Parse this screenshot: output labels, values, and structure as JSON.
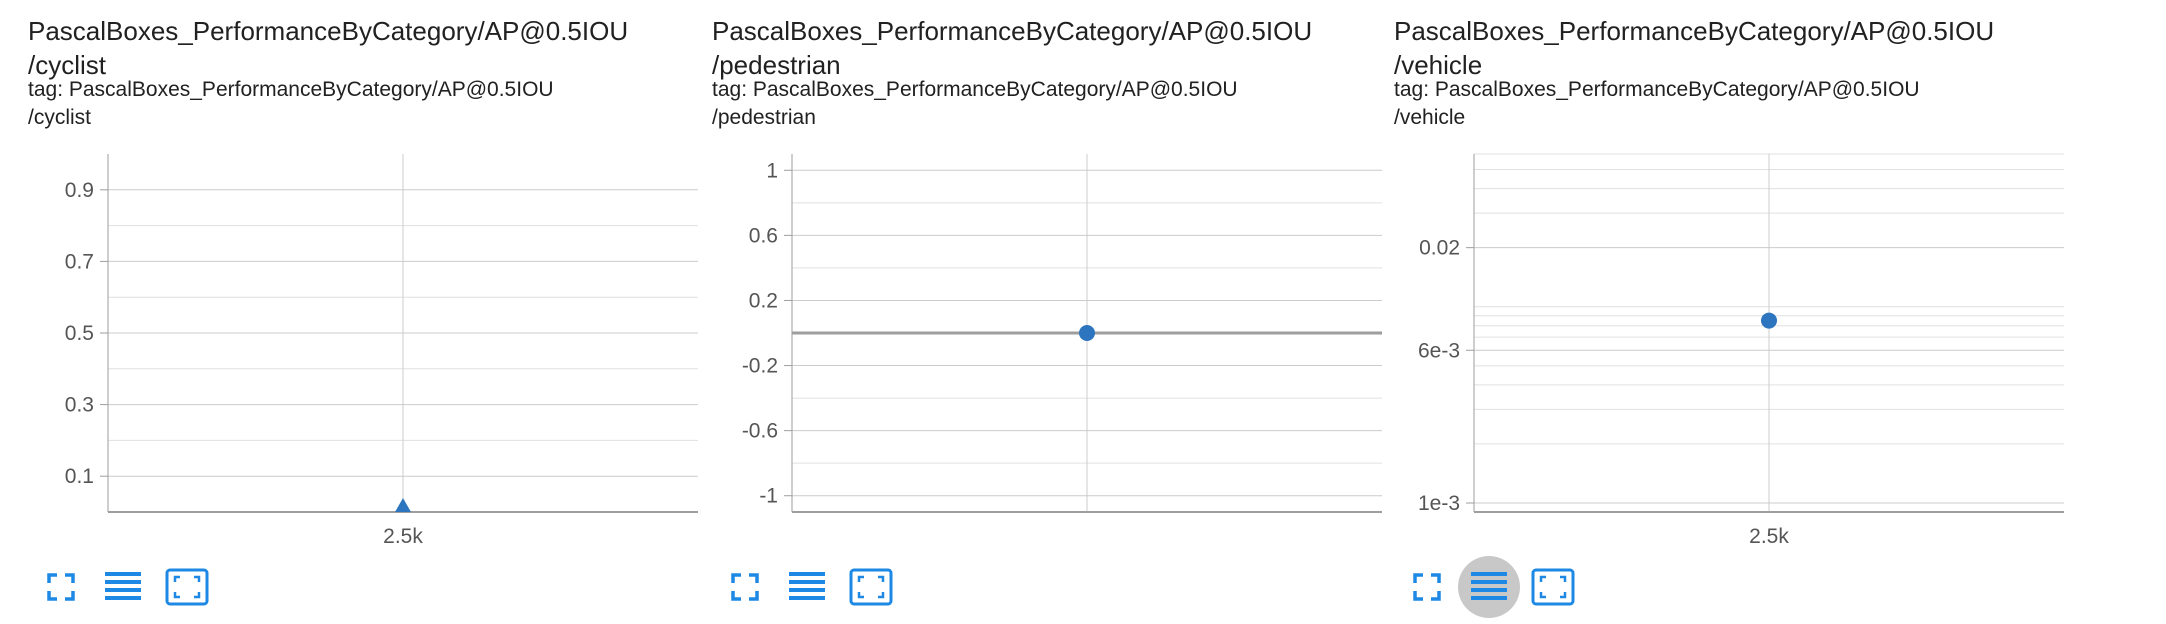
{
  "colors": {
    "point": "#2e75c0",
    "grid_major": "#cccccc",
    "grid_minor": "#e0e0e0",
    "axis": "#9e9e9e",
    "zero_line": "#9e9e9e",
    "icon": "#1e88e5",
    "active_button_bg": "#c8c8c8"
  },
  "cards": [
    {
      "title_line1": "PascalBoxes_PerformanceByCategory/AP@0.5IOU",
      "title_line2": "/cyclist",
      "tag_line1": "tag: PascalBoxes_PerformanceByCategory/AP@0.5IOU",
      "tag_line2": "/cyclist",
      "toolbar": {
        "fit_icon": "fullscreen-icon",
        "log_icon": "list-lines-icon",
        "range_icon": "fit-domain-icon",
        "active": "none"
      }
    },
    {
      "title_line1": "PascalBoxes_PerformanceByCategory/AP@0.5IOU",
      "title_line2": "/pedestrian",
      "tag_line1": "tag: PascalBoxes_PerformanceByCategory/AP@0.5IOU",
      "tag_line2": "/pedestrian",
      "toolbar": {
        "fit_icon": "fullscreen-icon",
        "log_icon": "list-lines-icon",
        "range_icon": "fit-domain-icon",
        "active": "none"
      }
    },
    {
      "title_line1": "PascalBoxes_PerformanceByCategory/AP@0.5IOU",
      "title_line2": "/vehicle",
      "tag_line1": "tag: PascalBoxes_PerformanceByCategory/AP@0.5IOU",
      "tag_line2": "/vehicle",
      "toolbar": {
        "fit_icon": "fullscreen-icon",
        "log_icon": "list-lines-icon",
        "range_icon": "fit-domain-icon",
        "active": "log"
      }
    }
  ],
  "chart_data": [
    {
      "type": "line",
      "yscale": "linear",
      "ylim": [
        0.0,
        1.0
      ],
      "y_ticks": [
        0.1,
        0.3,
        0.5,
        0.7,
        0.9
      ],
      "y_tick_labels": [
        "0.1",
        "0.3",
        "0.5",
        "0.7",
        "0.9"
      ],
      "y_minor_ticks": [
        0.2,
        0.4,
        0.6,
        0.8
      ],
      "x_ticks": [
        2500
      ],
      "x_tick_labels": [
        "2.5k"
      ],
      "xlim": [
        1500,
        3500
      ],
      "series": [
        {
          "x": [
            2500
          ],
          "y": [
            0.0
          ],
          "marker": "triangle"
        }
      ],
      "grid": true
    },
    {
      "type": "line",
      "yscale": "linear",
      "ylim": [
        -1.1,
        1.1
      ],
      "y_ticks": [
        -1,
        -0.6,
        -0.2,
        0.2,
        0.6,
        1
      ],
      "y_tick_labels": [
        "-1",
        "-0.6",
        "-0.2",
        "0.2",
        "0.6",
        "1"
      ],
      "y_minor_ticks": [
        -0.8,
        -0.4,
        0,
        0.4,
        0.8
      ],
      "x_ticks": [
        2500
      ],
      "x_tick_labels": [
        ""
      ],
      "xlim": [
        1500,
        3500
      ],
      "series": [
        {
          "x": [
            2500
          ],
          "y": [
            0.0
          ],
          "marker": "circle"
        }
      ],
      "grid": true
    },
    {
      "type": "line",
      "yscale": "log",
      "ylim": [
        0.0009,
        0.06
      ],
      "y_ticks": [
        0.001,
        0.006,
        0.02
      ],
      "y_tick_labels": [
        "1e-3",
        "6e-3",
        "0.02"
      ],
      "y_minor_ticks": [
        0.0009,
        0.002,
        0.003,
        0.004,
        0.005,
        0.007,
        0.008,
        0.009,
        0.01,
        0.03,
        0.04,
        0.05,
        0.06
      ],
      "x_ticks": [
        2500
      ],
      "x_tick_labels": [
        "2.5k"
      ],
      "xlim": [
        1500,
        3500
      ],
      "series": [
        {
          "x": [
            2500
          ],
          "y": [
            0.0085
          ],
          "marker": "circle"
        }
      ],
      "grid": true
    }
  ]
}
